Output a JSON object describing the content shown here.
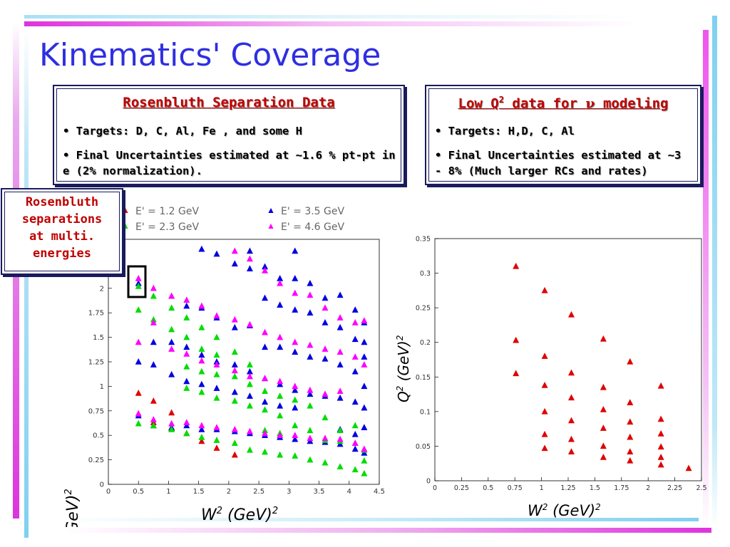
{
  "slide": {
    "title": "Kinematics' Coverage",
    "colors": {
      "title": "#2f2fe0",
      "accent_pink": "#ee44ee",
      "accent_cyan": "#7fd0f0",
      "box_title": "#c00000"
    }
  },
  "box_left": {
    "title": "Rosenbluth Separation Data",
    "bullet1": "• Targets: D, C, Al, Fe , and some H",
    "bullet2": "• Final Uncertainties estimated at ~1.6 % pt-pt in e (2% normalization)."
  },
  "box_right": {
    "title_part1": "Low Q",
    "title_sup": "2",
    "title_part2": " data for ",
    "title_nu": "ν",
    "title_part3": " modeling",
    "bullet1": "• Targets: H,D, C, Al",
    "bullet2": "• Final Uncertainties estimated at ~3 - 8%     (Much larger RCs and rates)"
  },
  "side_label": {
    "line1": "Rosenbluth",
    "line2": "separations",
    "line3": "at multi.",
    "line4": "energies"
  },
  "chart_data": [
    {
      "type": "scatter",
      "xlabel_base": "W",
      "xlabel_sup": "2",
      "xlabel_rest": " (GeV)",
      "xlabel_sup2": "2",
      "ylabel_base": "Q",
      "ylabel_sup": "2",
      "ylabel_rest": " (GeV)",
      "ylabel_sup2": "2",
      "xlim": [
        0,
        4.5
      ],
      "ylim": [
        0,
        2.5
      ],
      "xticks": [
        "0",
        "0.5",
        "1",
        "1.5",
        "2",
        "2.5",
        "3",
        "3.5",
        "4",
        "4.5"
      ],
      "yticks": [
        "0",
        "0.25",
        "0.5",
        "0.75",
        "1",
        "1.25",
        "1.5",
        "1.75",
        "2",
        "2.25",
        "2.5"
      ],
      "legend": [
        {
          "label": "E' = 1.2 GeV",
          "color": "#e00000"
        },
        {
          "label": "E' = 3.5 GeV",
          "color": "#0000e0"
        },
        {
          "label": "E' = 2.3 GeV",
          "color": "#00dd00"
        },
        {
          "label": "E' = 4.6 GeV",
          "color": "#ff00ff"
        }
      ],
      "series": [
        {
          "name": "E' = 1.2 GeV",
          "color": "#e00000",
          "points": [
            [
              0.5,
              0.93
            ],
            [
              0.5,
              0.72
            ],
            [
              0.75,
              0.85
            ],
            [
              0.75,
              0.63
            ],
            [
              1.05,
              0.73
            ],
            [
              1.05,
              0.57
            ],
            [
              1.3,
              0.52
            ],
            [
              1.55,
              0.44
            ],
            [
              1.8,
              0.37
            ],
            [
              2.1,
              0.3
            ]
          ]
        },
        {
          "name": "E' = 3.5 GeV",
          "color": "#0000e0",
          "points": [
            [
              0.5,
              2.05
            ],
            [
              0.5,
              1.25
            ],
            [
              0.5,
              0.7
            ],
            [
              0.75,
              1.45
            ],
            [
              0.75,
              1.22
            ],
            [
              0.75,
              0.6
            ],
            [
              1.05,
              1.92
            ],
            [
              1.05,
              1.45
            ],
            [
              1.05,
              1.12
            ],
            [
              1.05,
              0.58
            ],
            [
              1.3,
              1.82
            ],
            [
              1.3,
              1.4
            ],
            [
              1.3,
              1.05
            ],
            [
              1.3,
              0.6
            ],
            [
              1.55,
              2.4
            ],
            [
              1.55,
              1.8
            ],
            [
              1.55,
              1.32
            ],
            [
              1.55,
              1.02
            ],
            [
              1.55,
              0.56
            ],
            [
              1.8,
              2.35
            ],
            [
              1.8,
              1.7
            ],
            [
              1.8,
              1.25
            ],
            [
              1.8,
              0.98
            ],
            [
              1.8,
              0.56
            ],
            [
              2.1,
              2.25
            ],
            [
              2.1,
              1.6
            ],
            [
              2.1,
              1.22
            ],
            [
              2.1,
              0.94
            ],
            [
              2.1,
              0.54
            ],
            [
              2.35,
              2.38
            ],
            [
              2.35,
              2.2
            ],
            [
              2.35,
              1.62
            ],
            [
              2.35,
              1.15
            ],
            [
              2.35,
              0.9
            ],
            [
              2.35,
              0.52
            ],
            [
              2.6,
              2.22
            ],
            [
              2.6,
              1.9
            ],
            [
              2.6,
              1.4
            ],
            [
              2.6,
              1.08
            ],
            [
              2.6,
              0.84
            ],
            [
              2.6,
              0.5
            ],
            [
              2.85,
              2.1
            ],
            [
              2.85,
              1.83
            ],
            [
              2.85,
              1.4
            ],
            [
              2.85,
              1.02
            ],
            [
              2.85,
              0.8
            ],
            [
              2.85,
              0.48
            ],
            [
              3.1,
              2.38
            ],
            [
              3.1,
              2.1
            ],
            [
              3.1,
              1.78
            ],
            [
              3.1,
              1.35
            ],
            [
              3.1,
              0.96
            ],
            [
              3.1,
              0.78
            ],
            [
              3.1,
              0.46
            ],
            [
              3.35,
              2.05
            ],
            [
              3.35,
              1.75
            ],
            [
              3.35,
              1.3
            ],
            [
              3.35,
              0.92
            ],
            [
              3.35,
              0.44
            ],
            [
              3.6,
              1.9
            ],
            [
              3.6,
              1.65
            ],
            [
              3.6,
              1.28
            ],
            [
              3.6,
              0.9
            ],
            [
              3.6,
              0.43
            ],
            [
              3.85,
              1.93
            ],
            [
              3.85,
              1.6
            ],
            [
              3.85,
              1.22
            ],
            [
              3.85,
              0.88
            ],
            [
              3.85,
              0.56
            ],
            [
              3.85,
              0.41
            ],
            [
              4.1,
              1.78
            ],
            [
              4.1,
              1.48
            ],
            [
              4.1,
              1.15
            ],
            [
              4.1,
              0.84
            ],
            [
              4.1,
              0.51
            ],
            [
              4.1,
              0.36
            ],
            [
              4.25,
              1.65
            ],
            [
              4.25,
              1.45
            ],
            [
              4.25,
              1.3
            ],
            [
              4.25,
              1.0
            ],
            [
              4.25,
              0.78
            ],
            [
              4.25,
              0.58
            ],
            [
              4.25,
              0.32
            ]
          ]
        },
        {
          "name": "E' = 2.3 GeV",
          "color": "#00dd00",
          "points": [
            [
              0.5,
              2.02
            ],
            [
              0.5,
              1.78
            ],
            [
              0.5,
              0.62
            ],
            [
              0.75,
              1.92
            ],
            [
              0.75,
              1.68
            ],
            [
              0.75,
              0.6
            ],
            [
              1.05,
              1.8
            ],
            [
              1.05,
              1.58
            ],
            [
              1.05,
              0.56
            ],
            [
              1.3,
              1.7
            ],
            [
              1.3,
              1.5
            ],
            [
              1.3,
              1.2
            ],
            [
              1.3,
              0.98
            ],
            [
              1.3,
              0.52
            ],
            [
              1.55,
              1.6
            ],
            [
              1.55,
              1.38
            ],
            [
              1.55,
              1.15
            ],
            [
              1.55,
              0.94
            ],
            [
              1.55,
              0.48
            ],
            [
              1.8,
              1.5
            ],
            [
              1.8,
              1.32
            ],
            [
              1.8,
              1.12
            ],
            [
              1.8,
              0.88
            ],
            [
              1.8,
              0.45
            ],
            [
              2.1,
              1.35
            ],
            [
              2.1,
              1.1
            ],
            [
              2.1,
              0.85
            ],
            [
              2.1,
              0.42
            ],
            [
              2.35,
              1.22
            ],
            [
              2.35,
              1.02
            ],
            [
              2.35,
              0.8
            ],
            [
              2.35,
              0.35
            ],
            [
              2.6,
              0.95
            ],
            [
              2.6,
              0.76
            ],
            [
              2.6,
              0.55
            ],
            [
              2.6,
              0.33
            ],
            [
              2.85,
              0.9
            ],
            [
              2.85,
              0.7
            ],
            [
              2.85,
              0.52
            ],
            [
              2.85,
              0.3
            ],
            [
              3.1,
              0.86
            ],
            [
              3.1,
              0.6
            ],
            [
              3.1,
              0.29
            ],
            [
              3.35,
              0.8
            ],
            [
              3.35,
              0.55
            ],
            [
              3.35,
              0.25
            ],
            [
              3.6,
              0.68
            ],
            [
              3.6,
              0.45
            ],
            [
              3.6,
              0.22
            ],
            [
              3.85,
              0.55
            ],
            [
              3.85,
              0.44
            ],
            [
              3.85,
              0.18
            ],
            [
              4.1,
              0.6
            ],
            [
              4.1,
              0.42
            ],
            [
              4.1,
              0.15
            ],
            [
              4.25,
              0.35
            ],
            [
              4.25,
              0.24
            ],
            [
              4.25,
              0.11
            ]
          ]
        },
        {
          "name": "E' = 4.6 GeV",
          "color": "#ff00ff",
          "points": [
            [
              0.5,
              2.1
            ],
            [
              0.5,
              1.45
            ],
            [
              0.5,
              0.72
            ],
            [
              0.75,
              2.0
            ],
            [
              0.75,
              1.65
            ],
            [
              0.75,
              0.66
            ],
            [
              1.05,
              1.92
            ],
            [
              1.05,
              1.38
            ],
            [
              1.05,
              0.62
            ],
            [
              1.3,
              1.88
            ],
            [
              1.3,
              1.33
            ],
            [
              1.3,
              0.63
            ],
            [
              1.55,
              1.82
            ],
            [
              1.55,
              1.26
            ],
            [
              1.55,
              0.6
            ],
            [
              1.8,
              1.72
            ],
            [
              1.8,
              1.22
            ],
            [
              1.8,
              0.58
            ],
            [
              2.1,
              2.38
            ],
            [
              2.1,
              1.68
            ],
            [
              2.1,
              1.16
            ],
            [
              2.1,
              0.56
            ],
            [
              2.35,
              2.3
            ],
            [
              2.35,
              1.63
            ],
            [
              2.35,
              1.1
            ],
            [
              2.35,
              0.54
            ],
            [
              2.6,
              2.18
            ],
            [
              2.6,
              1.55
            ],
            [
              2.6,
              1.08
            ],
            [
              2.6,
              0.52
            ],
            [
              2.85,
              2.05
            ],
            [
              2.85,
              1.5
            ],
            [
              2.85,
              1.05
            ],
            [
              2.85,
              0.5
            ],
            [
              3.1,
              1.95
            ],
            [
              3.1,
              1.45
            ],
            [
              3.1,
              1.0
            ],
            [
              3.1,
              0.5
            ],
            [
              3.35,
              1.93
            ],
            [
              3.35,
              1.42
            ],
            [
              3.35,
              0.96
            ],
            [
              3.35,
              0.47
            ],
            [
              3.6,
              1.8
            ],
            [
              3.6,
              1.38
            ],
            [
              3.6,
              0.92
            ],
            [
              3.6,
              0.47
            ],
            [
              3.85,
              1.7
            ],
            [
              3.85,
              1.35
            ],
            [
              3.85,
              0.95
            ],
            [
              3.85,
              0.46
            ],
            [
              4.1,
              1.65
            ],
            [
              4.1,
              1.3
            ],
            [
              4.1,
              0.42
            ],
            [
              4.25,
              1.67
            ],
            [
              4.25,
              1.22
            ],
            [
              4.25,
              0.36
            ]
          ]
        }
      ]
    },
    {
      "type": "scatter",
      "xlabel_base": "W",
      "xlabel_sup": "2",
      "xlabel_rest": " (GeV)",
      "xlabel_sup2": "2",
      "ylabel_base": "Q",
      "ylabel_sup": "2",
      "ylabel_rest": " (GeV)",
      "ylabel_sup2": "2",
      "xlim": [
        0,
        2.5
      ],
      "ylim": [
        0,
        0.35
      ],
      "xticks": [
        "0",
        "0.25",
        "0.5",
        "0.75",
        "1",
        "1.25",
        "1.5",
        "1.75",
        "2",
        "2.25",
        "2.5"
      ],
      "yticks": [
        "0",
        "0.05",
        "0.1",
        "0.15",
        "0.2",
        "0.25",
        "0.3",
        "0.35"
      ],
      "series": [
        {
          "name": "",
          "color": "#e00000",
          "points": [
            [
              0.76,
              0.31
            ],
            [
              0.76,
              0.203
            ],
            [
              0.76,
              0.155
            ],
            [
              1.03,
              0.275
            ],
            [
              1.03,
              0.18
            ],
            [
              1.03,
              0.138
            ],
            [
              1.03,
              0.1
            ],
            [
              1.03,
              0.067
            ],
            [
              1.03,
              0.047
            ],
            [
              1.28,
              0.24
            ],
            [
              1.28,
              0.156
            ],
            [
              1.28,
              0.12
            ],
            [
              1.28,
              0.087
            ],
            [
              1.28,
              0.06
            ],
            [
              1.28,
              0.042
            ],
            [
              1.58,
              0.205
            ],
            [
              1.58,
              0.135
            ],
            [
              1.58,
              0.103
            ],
            [
              1.58,
              0.076
            ],
            [
              1.58,
              0.05
            ],
            [
              1.58,
              0.034
            ],
            [
              1.83,
              0.172
            ],
            [
              1.83,
              0.113
            ],
            [
              1.83,
              0.085
            ],
            [
              1.83,
              0.063
            ],
            [
              1.83,
              0.042
            ],
            [
              1.83,
              0.029
            ],
            [
              2.12,
              0.137
            ],
            [
              2.12,
              0.089
            ],
            [
              2.12,
              0.068
            ],
            [
              2.12,
              0.049
            ],
            [
              2.12,
              0.034
            ],
            [
              2.12,
              0.023
            ],
            [
              2.38,
              0.018
            ]
          ]
        }
      ]
    }
  ]
}
